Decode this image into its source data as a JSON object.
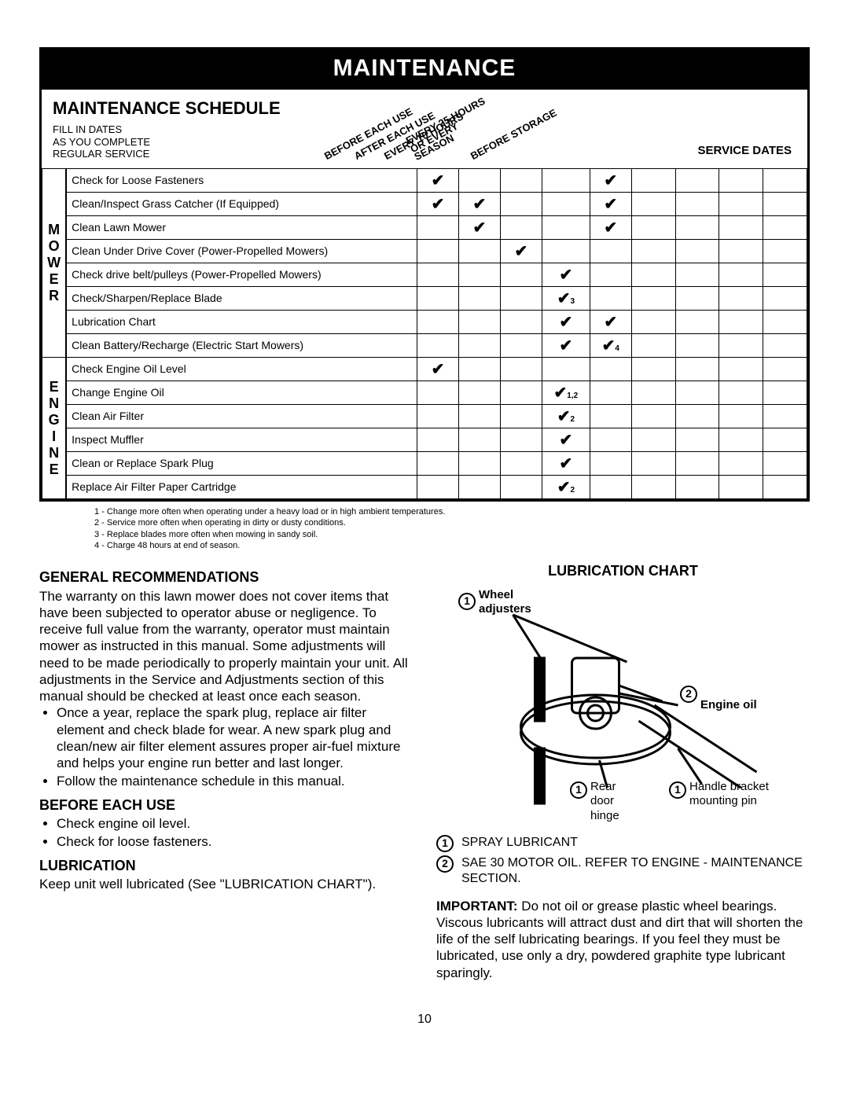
{
  "title": "MAINTENANCE",
  "schedule": {
    "heading": "MAINTENANCE SCHEDULE",
    "sub1": "FILL IN DATES",
    "sub2": "AS YOU COMPLETE",
    "sub3": "REGULAR SERVICE",
    "cols": [
      "BEFORE EACH USE",
      "AFTER EACH USE",
      "EVERY 10 HOURS",
      "EVERY 25 HOURS OR EVERY SEASON",
      "BEFORE STORAGE"
    ],
    "svc_label": "SERVICE DATES",
    "cat_mower": "MOWER",
    "cat_engine": "ENGINE",
    "mower_rows": [
      {
        "task": "Check for Loose Fasteners",
        "c": [
          1,
          0,
          0,
          0,
          1
        ],
        "sub": [
          "",
          "",
          "",
          "",
          ""
        ]
      },
      {
        "task": "Clean/Inspect Grass Catcher (If Equipped)",
        "c": [
          1,
          1,
          0,
          0,
          1
        ],
        "sub": [
          "",
          "",
          "",
          "",
          ""
        ]
      },
      {
        "task": "Clean Lawn Mower",
        "c": [
          0,
          1,
          0,
          0,
          1
        ],
        "sub": [
          "",
          "",
          "",
          "",
          ""
        ]
      },
      {
        "task": "Clean Under Drive Cover (Power-Propelled Mowers)",
        "c": [
          0,
          0,
          1,
          0,
          0
        ],
        "sub": [
          "",
          "",
          "",
          "",
          ""
        ]
      },
      {
        "task": "Check drive belt/pulleys (Power-Propelled Mowers)",
        "c": [
          0,
          0,
          0,
          1,
          0
        ],
        "sub": [
          "",
          "",
          "",
          "",
          ""
        ]
      },
      {
        "task": "Check/Sharpen/Replace Blade",
        "c": [
          0,
          0,
          0,
          1,
          0
        ],
        "sub": [
          "",
          "",
          "",
          "3",
          ""
        ]
      },
      {
        "task": "Lubrication Chart",
        "c": [
          0,
          0,
          0,
          1,
          1
        ],
        "sub": [
          "",
          "",
          "",
          "",
          ""
        ]
      },
      {
        "task": "Clean Battery/Recharge (Electric Start Mowers)",
        "c": [
          0,
          0,
          0,
          1,
          1
        ],
        "sub": [
          "",
          "",
          "",
          "",
          "4"
        ]
      }
    ],
    "engine_rows": [
      {
        "task": "Check Engine Oil Level",
        "c": [
          1,
          0,
          0,
          0,
          0
        ],
        "sub": [
          "",
          "",
          "",
          "",
          ""
        ]
      },
      {
        "task": "Change Engine Oil",
        "c": [
          0,
          0,
          0,
          1,
          0
        ],
        "sub": [
          "",
          "",
          "",
          "1,2",
          ""
        ]
      },
      {
        "task": "Clean Air Filter",
        "c": [
          0,
          0,
          0,
          1,
          0
        ],
        "sub": [
          "",
          "",
          "",
          "2",
          ""
        ]
      },
      {
        "task": "Inspect Muffler",
        "c": [
          0,
          0,
          0,
          1,
          0
        ],
        "sub": [
          "",
          "",
          "",
          "",
          ""
        ]
      },
      {
        "task": "Clean or Replace Spark Plug",
        "c": [
          0,
          0,
          0,
          1,
          0
        ],
        "sub": [
          "",
          "",
          "",
          "",
          ""
        ]
      },
      {
        "task": "Replace Air Filter Paper Cartridge",
        "c": [
          0,
          0,
          0,
          1,
          0
        ],
        "sub": [
          "",
          "",
          "",
          "2",
          ""
        ]
      }
    ]
  },
  "footnotes": [
    "1 - Change more often when operating under a heavy load or in high ambient temperatures.",
    "2 - Service more often when operating in dirty or dusty conditions.",
    "3 - Replace blades more often when mowing in sandy soil.",
    "4 - Charge 48 hours at end of season."
  ],
  "left": {
    "h_general": "GENERAL RECOMMENDATIONS",
    "p_general": "The warranty on this lawn mower does not cover items that have been subjected to operator abuse or negligence. To receive full value from the warranty, operator must maintain mower as instructed in this manual. Some adjustments will need to be made periodically to properly maintain your unit. All adjustments in the Service and Adjustments section of this manual should be checked at least once each season.",
    "li1": "Once a year, replace the spark plug, replace air filter element and check blade for wear. A new spark plug and clean/new air filter element assures proper air-fuel mixture and helps your engine run better and last longer.",
    "li2": "Follow the maintenance schedule in this manual.",
    "h_before": "BEFORE EACH USE",
    "b1": "Check engine oil level.",
    "b2": "Check for loose fasteners.",
    "h_lube": "LUBRICATION",
    "p_lube": "Keep unit well lubricated (See \"LUBRICATION CHART\")."
  },
  "right": {
    "h_chart": "LUBRICATION CHART",
    "labels": {
      "wheel": "Wheel adjusters",
      "engine": "Engine oil",
      "rear": "Rear door hinge",
      "handle": "Handle bracket mounting pin"
    },
    "legend1": "SPRAY LUBRICANT",
    "legend2": "SAE 30  MOTOR OIL. REFER TO ENGINE - MAINTENANCE SECTION.",
    "important_label": "IMPORTANT:",
    "important": "Do not oil or grease plastic wheel bearings. Viscous lubricants will attract dust and dirt that will shorten the life of the self lubricating bearings. If you feel they must be lubricated, use only a dry, powdered graphite type lubricant sparingly."
  },
  "page": "10"
}
